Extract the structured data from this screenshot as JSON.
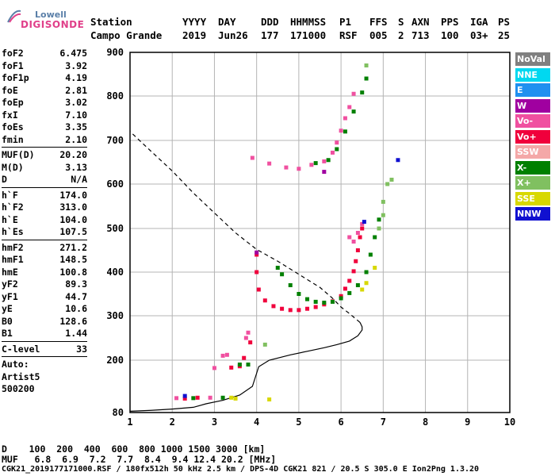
{
  "logo": {
    "top": "Lowell",
    "bottom": "DIGISONDE"
  },
  "header": {
    "cols": [
      {
        "label": "Station",
        "value": "Campo Grande"
      },
      {
        "label": "YYYY",
        "value": "2019"
      },
      {
        "label": "DAY",
        "value": "Jun26"
      },
      {
        "label": "DDD",
        "value": "177"
      },
      {
        "label": "HHMMSS",
        "value": "171000"
      },
      {
        "label": "P1",
        "value": "RSF"
      },
      {
        "label": "FFS",
        "value": "005"
      },
      {
        "label": "S",
        "value": "2"
      },
      {
        "label": "AXN",
        "value": "713"
      },
      {
        "label": "PPS",
        "value": "100"
      },
      {
        "label": "IGA",
        "value": "03+"
      },
      {
        "label": "PS",
        "value": "25"
      }
    ]
  },
  "params": {
    "group1": [
      {
        "k": "foF2",
        "v": "6.475"
      },
      {
        "k": "foF1",
        "v": "3.92"
      },
      {
        "k": "foF1p",
        "v": "4.19"
      },
      {
        "k": "foE",
        "v": "2.81"
      },
      {
        "k": "foEp",
        "v": "3.02"
      },
      {
        "k": "fxI",
        "v": "7.10"
      },
      {
        "k": "foEs",
        "v": "3.35"
      },
      {
        "k": "fmin",
        "v": "2.10"
      }
    ],
    "group2": [
      {
        "k": "MUF(D)",
        "v": "20.20"
      },
      {
        "k": "M(D)",
        "v": "3.13"
      },
      {
        "k": "D",
        "v": "N/A"
      }
    ],
    "group3": [
      {
        "k": "h`F",
        "v": "174.0"
      },
      {
        "k": "h`F2",
        "v": "313.0"
      },
      {
        "k": "h`E",
        "v": "104.0"
      },
      {
        "k": "h`Es",
        "v": "107.5"
      }
    ],
    "group4": [
      {
        "k": "hmF2",
        "v": "271.2"
      },
      {
        "k": "hmF1",
        "v": "148.5"
      },
      {
        "k": "hmE",
        "v": "100.8"
      },
      {
        "k": "yF2",
        "v": "89.3"
      },
      {
        "k": "yF1",
        "v": "44.7"
      },
      {
        "k": "yE",
        "v": "10.6"
      },
      {
        "k": "B0",
        "v": "128.6"
      },
      {
        "k": "B1",
        "v": "1.44"
      }
    ],
    "group5": [
      {
        "k": "C-level",
        "v": "33"
      }
    ],
    "auto": [
      "Auto:",
      "Artist5",
      "500200"
    ]
  },
  "legend": [
    {
      "label": "NoVal",
      "color": "#808080"
    },
    {
      "label": "NNE",
      "color": "#00d8f0"
    },
    {
      "label": "E",
      "color": "#2090f0"
    },
    {
      "label": "W",
      "color": "#a000a0"
    },
    {
      "label": "Vo-",
      "color": "#f050a0"
    },
    {
      "label": "Vo+",
      "color": "#f0003c"
    },
    {
      "label": "SSW",
      "color": "#f4a8a8"
    },
    {
      "label": "X-",
      "color": "#008000"
    },
    {
      "label": "X+",
      "color": "#80c060"
    },
    {
      "label": "SSE",
      "color": "#d8d800"
    },
    {
      "label": "NNW",
      "color": "#1010d0"
    }
  ],
  "footer": {
    "line1": "D    100  200  400  600  800 1000 1500 3000 [km]",
    "line2": "MUF   6.8  6.9  7.2  7.7  8.4  9.4 12.4 20.2 [MHz]",
    "line3": "CGK21_2019177171000.RSF / 180fx512h 50 kHz 2.5 km / DPS-4D CGK21 821 / 20.5 S 305.0 E Ion2Png 1.3.20"
  },
  "chart_data": {
    "type": "scatter",
    "xlabel": "",
    "ylabel": "",
    "xlim": [
      1,
      10
    ],
    "ylim": [
      80,
      900
    ],
    "xticks": [
      1,
      2,
      3,
      4,
      5,
      6,
      7,
      8,
      9,
      10
    ],
    "yticks": [
      80,
      200,
      300,
      400,
      500,
      600,
      700,
      800,
      900
    ],
    "grid": true,
    "series": [
      {
        "name": "Vo+",
        "color": "#f0003c",
        "points": [
          [
            4.0,
            440
          ],
          [
            4.0,
            400
          ],
          [
            4.05,
            360
          ],
          [
            4.2,
            335
          ],
          [
            4.4,
            322
          ],
          [
            4.6,
            316
          ],
          [
            4.8,
            313
          ],
          [
            5.0,
            313
          ],
          [
            5.2,
            316
          ],
          [
            5.4,
            320
          ],
          [
            5.6,
            326
          ],
          [
            5.8,
            333
          ],
          [
            6.0,
            345
          ],
          [
            6.1,
            362
          ],
          [
            6.2,
            380
          ],
          [
            6.3,
            402
          ],
          [
            6.35,
            425
          ],
          [
            6.4,
            450
          ],
          [
            6.45,
            480
          ],
          [
            6.5,
            500
          ],
          [
            2.3,
            112
          ],
          [
            2.6,
            114
          ],
          [
            3.4,
            183
          ],
          [
            3.6,
            186
          ],
          [
            3.7,
            205
          ],
          [
            3.85,
            240
          ]
        ]
      },
      {
        "name": "Vo-",
        "color": "#f050a0",
        "points": [
          [
            3.9,
            660
          ],
          [
            4.3,
            647
          ],
          [
            4.7,
            638
          ],
          [
            5.0,
            635
          ],
          [
            5.3,
            644
          ],
          [
            5.6,
            652
          ],
          [
            5.8,
            672
          ],
          [
            5.9,
            695
          ],
          [
            6.0,
            722
          ],
          [
            6.1,
            750
          ],
          [
            6.2,
            775
          ],
          [
            6.3,
            805
          ],
          [
            6.2,
            480
          ],
          [
            6.3,
            470
          ],
          [
            6.4,
            490
          ],
          [
            6.5,
            510
          ],
          [
            3.0,
            182
          ],
          [
            3.8,
            262
          ],
          [
            3.75,
            250
          ],
          [
            3.2,
            210
          ],
          [
            3.3,
            212
          ],
          [
            2.1,
            113
          ],
          [
            2.9,
            114
          ]
        ]
      },
      {
        "name": "X-",
        "color": "#008000",
        "points": [
          [
            4.5,
            410
          ],
          [
            4.6,
            395
          ],
          [
            4.8,
            370
          ],
          [
            5.0,
            350
          ],
          [
            5.2,
            338
          ],
          [
            5.4,
            332
          ],
          [
            5.6,
            330
          ],
          [
            5.8,
            332
          ],
          [
            6.0,
            340
          ],
          [
            6.2,
            352
          ],
          [
            6.4,
            370
          ],
          [
            6.6,
            400
          ],
          [
            6.7,
            440
          ],
          [
            6.8,
            480
          ],
          [
            6.9,
            520
          ],
          [
            5.4,
            648
          ],
          [
            5.7,
            655
          ],
          [
            5.9,
            680
          ],
          [
            6.1,
            720
          ],
          [
            6.3,
            765
          ],
          [
            6.5,
            808
          ],
          [
            6.6,
            840
          ],
          [
            3.6,
            190
          ],
          [
            3.8,
            190
          ],
          [
            2.5,
            113
          ],
          [
            3.2,
            114
          ]
        ]
      },
      {
        "name": "X+",
        "color": "#80c060",
        "points": [
          [
            7.0,
            560
          ],
          [
            7.1,
            600
          ],
          [
            7.2,
            610
          ],
          [
            4.2,
            235
          ],
          [
            6.6,
            870
          ],
          [
            6.9,
            500
          ],
          [
            7.0,
            530
          ]
        ]
      },
      {
        "name": "SSE",
        "color": "#d8d800",
        "points": [
          [
            6.5,
            360
          ],
          [
            6.6,
            375
          ],
          [
            6.8,
            410
          ],
          [
            3.4,
            114
          ],
          [
            3.5,
            112
          ],
          [
            4.3,
            110
          ]
        ]
      },
      {
        "name": "NNW",
        "color": "#1010d0",
        "points": [
          [
            6.55,
            515
          ],
          [
            7.35,
            655
          ],
          [
            2.3,
            118
          ]
        ]
      },
      {
        "name": "W",
        "color": "#a000a0",
        "points": [
          [
            4.0,
            445
          ],
          [
            5.6,
            628
          ]
        ]
      }
    ],
    "profile": [
      [
        1.0,
        83
      ],
      [
        1.5,
        85
      ],
      [
        2.0,
        88
      ],
      [
        2.5,
        92
      ],
      [
        2.8,
        100
      ],
      [
        3.2,
        108
      ],
      [
        3.6,
        120
      ],
      [
        3.9,
        140
      ],
      [
        3.95,
        155
      ],
      [
        4.05,
        185
      ],
      [
        4.3,
        200
      ],
      [
        4.8,
        212
      ],
      [
        5.2,
        220
      ],
      [
        5.6,
        228
      ],
      [
        5.9,
        235
      ],
      [
        6.2,
        243
      ],
      [
        6.4,
        255
      ],
      [
        6.5,
        268
      ],
      [
        6.5,
        275
      ],
      [
        6.45,
        285
      ],
      [
        6.2,
        305
      ],
      [
        6.0,
        320
      ],
      [
        5.8,
        340
      ],
      [
        5.5,
        365
      ],
      [
        5.0,
        395
      ],
      [
        4.5,
        425
      ],
      [
        4.0,
        452
      ],
      [
        3.5,
        490
      ],
      [
        3.0,
        535
      ],
      [
        2.5,
        580
      ],
      [
        2.0,
        630
      ],
      [
        1.5,
        675
      ],
      [
        1.0,
        720
      ]
    ],
    "profile_solid_until": 20
  }
}
